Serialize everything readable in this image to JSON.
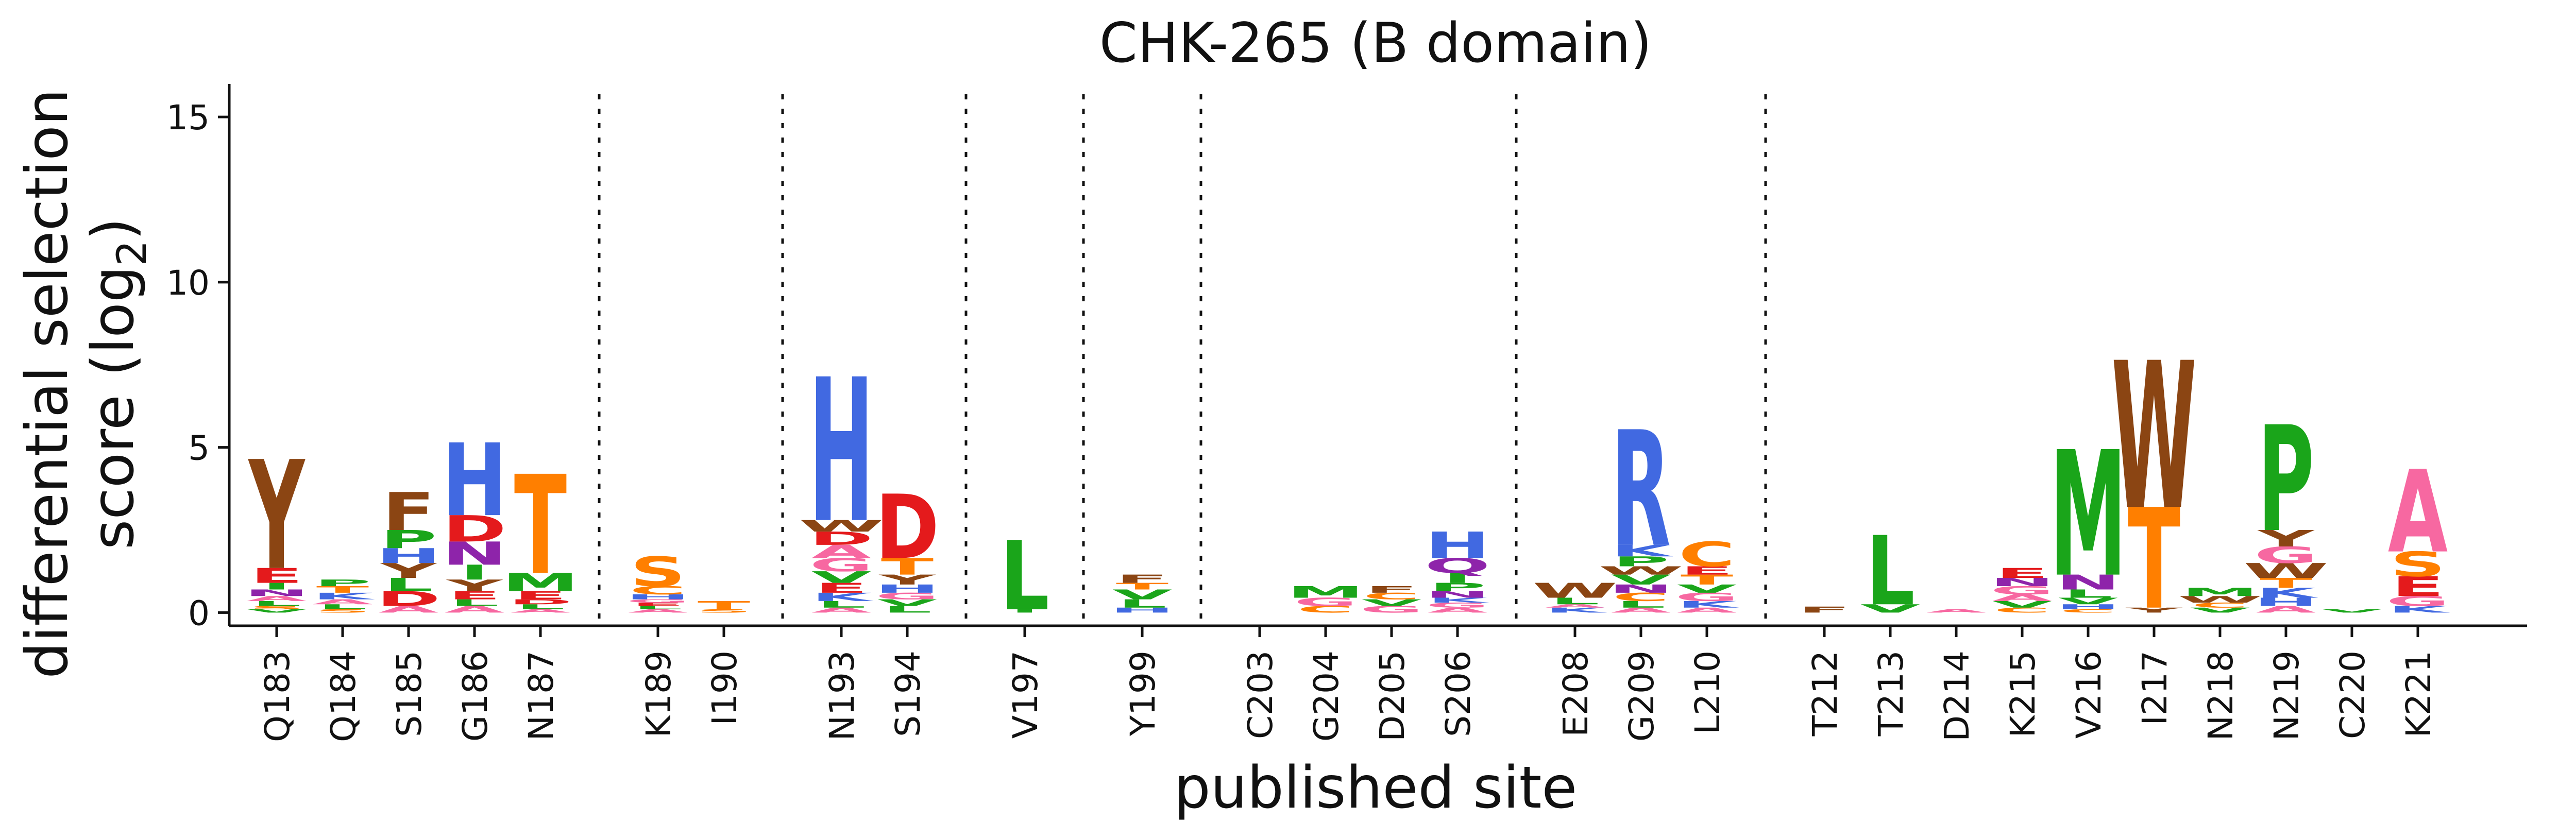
{
  "chart_data": {
    "type": "sequence-logo",
    "title": "CHK-265 (B domain)",
    "xlabel": "published site",
    "ylabel_line1": "differential selection",
    "ylabel_line2_prefix": "score (log",
    "ylabel_line2_sub": "2",
    "ylabel_line2_suffix": ")",
    "ylim": [
      -0.4,
      16
    ],
    "yticks": [
      "0",
      "5",
      "10",
      "15"
    ],
    "ytick_values": [
      0,
      5,
      10,
      15
    ],
    "groups": [
      [
        "Q183",
        "Q184",
        "S185",
        "G186",
        "N187"
      ],
      [
        "K189",
        "I190"
      ],
      [
        "N193",
        "S194"
      ],
      [
        "V197"
      ],
      [
        "Y199"
      ],
      [
        "C203",
        "G204",
        "D205",
        "S206"
      ],
      [
        "E208",
        "G209",
        "L210"
      ],
      [
        "T212",
        "T213",
        "D214",
        "K215",
        "V216",
        "I217",
        "N218",
        "N219",
        "C220",
        "K221"
      ]
    ],
    "colors": {
      "A": "#f768a1",
      "C": "#ff7f00",
      "D": "#e41a1c",
      "E": "#e41a1c",
      "F": "#8b4513",
      "G": "#f768a1",
      "H": "#4169e1",
      "I": "#1aa51a",
      "K": "#4169e1",
      "L": "#1aa51a",
      "M": "#1aa51a",
      "N": "#8e24aa",
      "P": "#1aa51a",
      "Q": "#8e24aa",
      "R": "#4169e1",
      "S": "#ff7f00",
      "T": "#ff7f00",
      "V": "#1aa51a",
      "W": "#8b4513",
      "Y": "#8b4513"
    },
    "stacks": [
      {
        "site": "Q183",
        "letters": [
          [
            "V",
            0.1
          ],
          [
            "S",
            0.1
          ],
          [
            "L",
            0.15
          ],
          [
            "A",
            0.15
          ],
          [
            "N",
            0.2
          ],
          [
            "I",
            0.2
          ],
          [
            "E",
            0.45
          ],
          [
            "Y",
            3.3
          ]
        ]
      },
      {
        "site": "Q184",
        "letters": [
          [
            "S",
            0.1
          ],
          [
            "L",
            0.15
          ],
          [
            "A",
            0.15
          ],
          [
            "K",
            0.2
          ],
          [
            "T",
            0.2
          ],
          [
            "P",
            0.2
          ]
        ]
      },
      {
        "site": "S185",
        "letters": [
          [
            "A",
            0.2
          ],
          [
            "D",
            0.45
          ],
          [
            "L",
            0.4
          ],
          [
            "Y",
            0.45
          ],
          [
            "H",
            0.45
          ],
          [
            "P",
            0.55
          ],
          [
            "F",
            1.15
          ]
        ]
      },
      {
        "site": "G186",
        "letters": [
          [
            "A",
            0.2
          ],
          [
            "L",
            0.2
          ],
          [
            "E",
            0.25
          ],
          [
            "Y",
            0.35
          ],
          [
            "I",
            0.45
          ],
          [
            "N",
            0.7
          ],
          [
            "D",
            0.8
          ],
          [
            "H",
            2.2
          ]
        ]
      },
      {
        "site": "N187",
        "letters": [
          [
            "A",
            0.1
          ],
          [
            "L",
            0.15
          ],
          [
            "D",
            0.15
          ],
          [
            "E",
            0.25
          ],
          [
            "M",
            0.55
          ],
          [
            "T",
            3.0
          ]
        ]
      },
      {
        "site": "K189",
        "letters": [
          [
            "A",
            0.1
          ],
          [
            "L",
            0.1
          ],
          [
            "E",
            0.1
          ],
          [
            "G",
            0.1
          ],
          [
            "H",
            0.15
          ],
          [
            "C",
            0.25
          ],
          [
            "S",
            0.9
          ]
        ]
      },
      {
        "site": "I190",
        "letters": [
          [
            "S",
            0.1
          ],
          [
            "T",
            0.25
          ]
        ]
      },
      {
        "site": "N193",
        "letters": [
          [
            "A",
            0.15
          ],
          [
            "L",
            0.2
          ],
          [
            "K",
            0.25
          ],
          [
            "E",
            0.3
          ],
          [
            "V",
            0.35
          ],
          [
            "G",
            0.4
          ],
          [
            "A",
            0.4
          ],
          [
            "D",
            0.4
          ],
          [
            "W",
            0.35
          ],
          [
            "H",
            4.35
          ]
        ]
      },
      {
        "site": "S194",
        "letters": [
          [
            "L",
            0.2
          ],
          [
            "V",
            0.2
          ],
          [
            "G",
            0.2
          ],
          [
            "H",
            0.25
          ],
          [
            "Y",
            0.3
          ],
          [
            "T",
            0.5
          ],
          [
            "D",
            1.95
          ]
        ]
      },
      {
        "site": "V197",
        "letters": [
          [
            "I",
            0.1
          ],
          [
            "L",
            2.1
          ]
        ]
      },
      {
        "site": "Y199",
        "letters": [
          [
            "H",
            0.15
          ],
          [
            "L",
            0.25
          ],
          [
            "V",
            0.3
          ],
          [
            "T",
            0.2
          ],
          [
            "F",
            0.25
          ]
        ]
      },
      {
        "site": "C203",
        "letters": []
      },
      {
        "site": "G204",
        "letters": [
          [
            "C",
            0.2
          ],
          [
            "G",
            0.25
          ],
          [
            "M",
            0.35
          ]
        ]
      },
      {
        "site": "D205",
        "letters": [
          [
            "G",
            0.2
          ],
          [
            "V",
            0.2
          ],
          [
            "C",
            0.2
          ],
          [
            "F",
            0.2
          ]
        ]
      },
      {
        "site": "S206",
        "letters": [
          [
            "A",
            0.15
          ],
          [
            "G",
            0.15
          ],
          [
            "K",
            0.15
          ],
          [
            "N",
            0.2
          ],
          [
            "P",
            0.25
          ],
          [
            "I",
            0.3
          ],
          [
            "Q",
            0.45
          ],
          [
            "H",
            0.8
          ]
        ]
      },
      {
        "site": "E208",
        "letters": [
          [
            "K",
            0.15
          ],
          [
            "A",
            0.1
          ],
          [
            "L",
            0.2
          ],
          [
            "W",
            0.45
          ]
        ]
      },
      {
        "site": "G209",
        "letters": [
          [
            "A",
            0.15
          ],
          [
            "L",
            0.2
          ],
          [
            "C",
            0.25
          ],
          [
            "N",
            0.25
          ],
          [
            "V",
            0.3
          ],
          [
            "W",
            0.25
          ],
          [
            "P",
            0.3
          ],
          [
            "K",
            0.35
          ],
          [
            "R",
            3.5
          ]
        ]
      },
      {
        "site": "L210",
        "letters": [
          [
            "A",
            0.15
          ],
          [
            "K",
            0.2
          ],
          [
            "G",
            0.25
          ],
          [
            "V",
            0.25
          ],
          [
            "T",
            0.3
          ],
          [
            "E",
            0.25
          ],
          [
            "C",
            0.75
          ]
        ]
      },
      {
        "site": "T212",
        "letters": [
          [
            "F",
            0.18
          ]
        ]
      },
      {
        "site": "T213",
        "letters": [
          [
            "V",
            0.25
          ],
          [
            "L",
            2.1
          ]
        ]
      },
      {
        "site": "D214",
        "letters": [
          [
            "A",
            0.1
          ]
        ]
      },
      {
        "site": "K215",
        "letters": [
          [
            "C",
            0.15
          ],
          [
            "V",
            0.2
          ],
          [
            "A",
            0.2
          ],
          [
            "G",
            0.25
          ],
          [
            "N",
            0.25
          ],
          [
            "E",
            0.3
          ]
        ]
      },
      {
        "site": "V216",
        "letters": [
          [
            "C",
            0.1
          ],
          [
            "H",
            0.15
          ],
          [
            "V",
            0.2
          ],
          [
            "L",
            0.25
          ],
          [
            "N",
            0.45
          ],
          [
            "M",
            3.8
          ]
        ]
      },
      {
        "site": "I217",
        "letters": [
          [
            "Y",
            0.15
          ],
          [
            "T",
            3.05
          ],
          [
            "W",
            4.45
          ]
        ]
      },
      {
        "site": "N218",
        "letters": [
          [
            "V",
            0.15
          ],
          [
            "C",
            0.15
          ],
          [
            "W",
            0.2
          ],
          [
            "M",
            0.25
          ]
        ]
      },
      {
        "site": "N219",
        "letters": [
          [
            "A",
            0.2
          ],
          [
            "H",
            0.25
          ],
          [
            "K",
            0.3
          ],
          [
            "T",
            0.3
          ],
          [
            "W",
            0.45
          ],
          [
            "G",
            0.5
          ],
          [
            "Y",
            0.5
          ],
          [
            "P",
            3.2
          ]
        ]
      },
      {
        "site": "C220",
        "letters": [
          [
            "V",
            0.1
          ]
        ]
      },
      {
        "site": "K221",
        "letters": [
          [
            "K",
            0.2
          ],
          [
            "G",
            0.3
          ],
          [
            "E",
            0.6
          ],
          [
            "S",
            0.75
          ],
          [
            "A",
            2.5
          ]
        ]
      }
    ]
  }
}
